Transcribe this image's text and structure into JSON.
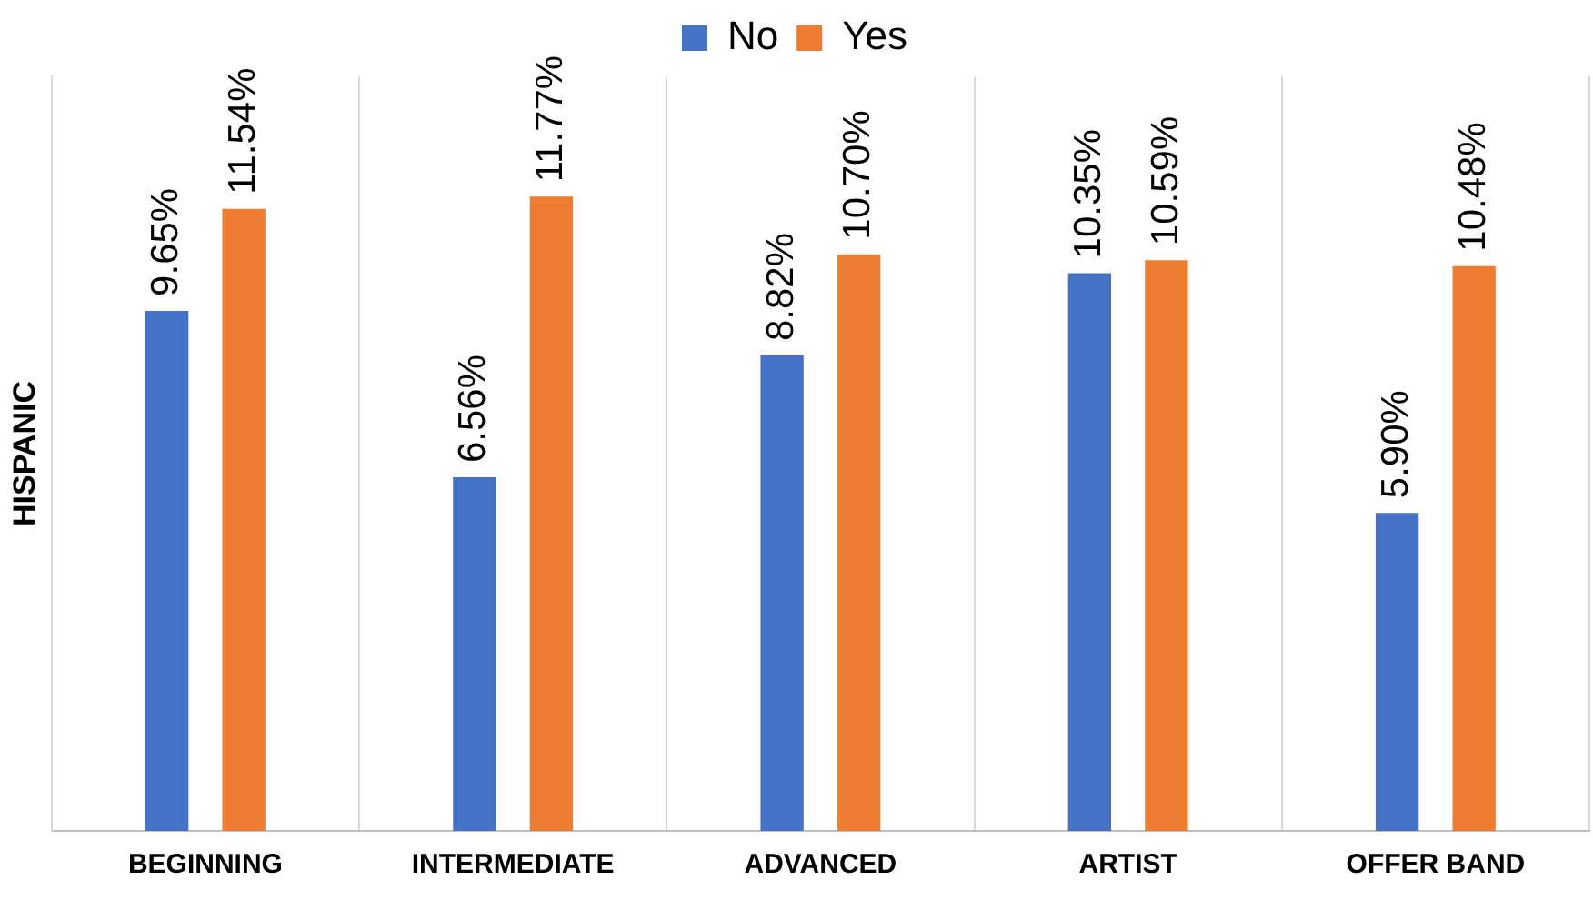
{
  "chart_data": {
    "type": "bar",
    "ylabel": "HISPANIC",
    "categories": [
      "BEGINNING",
      "INTERMEDIATE",
      "ADVANCED",
      "ARTIST",
      "OFFER BAND"
    ],
    "series": [
      {
        "name": "No",
        "color": "#4472c4",
        "values": [
          9.65,
          6.56,
          8.82,
          10.35,
          5.9
        ],
        "value_labels": [
          "9.65%",
          "6.56%",
          "8.82%",
          "10.35%",
          "5.90%"
        ]
      },
      {
        "name": "Yes",
        "color": "#ed7d31",
        "values": [
          11.54,
          11.77,
          10.7,
          10.59,
          10.48
        ],
        "value_labels": [
          "11.54%",
          "11.77%",
          "10.70%",
          "10.59%",
          "10.48%"
        ]
      }
    ],
    "ylim": [
      0,
      14
    ],
    "tick_labels": "x",
    "grid": "x",
    "legend": "top"
  }
}
